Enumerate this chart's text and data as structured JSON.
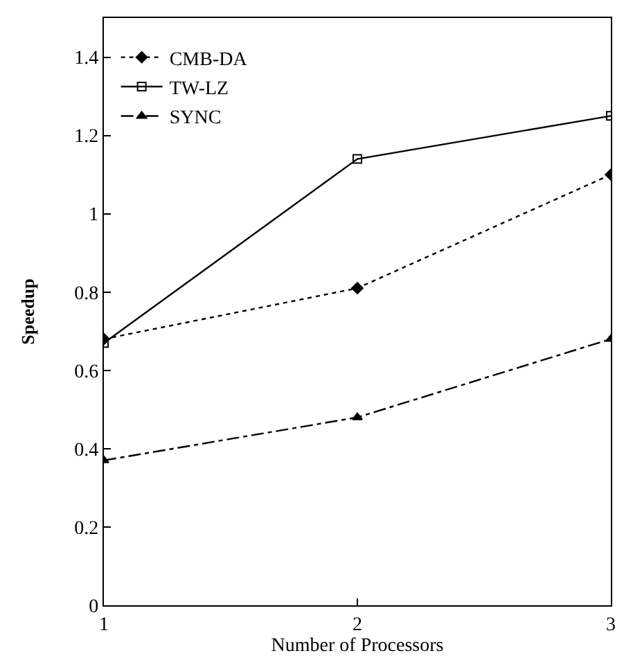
{
  "chart_data": {
    "type": "line",
    "xlabel": "Number of Processors",
    "ylabel": "Speedup",
    "x": [
      1,
      2,
      3
    ],
    "xlim": [
      1,
      3
    ],
    "xticks": [
      1,
      2,
      3
    ],
    "ylim": [
      0,
      1.5
    ],
    "yticks": [
      0,
      0.2,
      0.4,
      0.6,
      0.8,
      1,
      1.2,
      1.4
    ],
    "legend": "top left",
    "series": [
      {
        "name": "CMB-DA",
        "color": "#000000",
        "values": [
          0.68,
          0.81,
          1.1
        ],
        "marker": "diamond",
        "line_style": "dotted"
      },
      {
        "name": "TW-LZ",
        "color": "#000000",
        "values": [
          0.67,
          1.14,
          1.25
        ],
        "marker": "square",
        "line_style": "solid"
      },
      {
        "name": "SYNC",
        "color": "#000000",
        "values": [
          0.37,
          0.48,
          0.68
        ],
        "marker": "triangle",
        "line_style": "dashed"
      }
    ]
  }
}
